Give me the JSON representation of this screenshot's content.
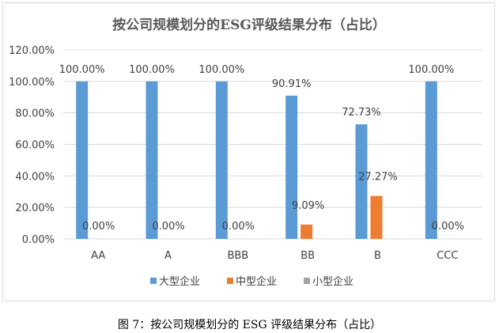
{
  "chart_data": {
    "type": "bar",
    "title": "按公司规模划分的ESG评级结果分布（占比）",
    "categories": [
      "AA",
      "A",
      "BBB",
      "BB",
      "B",
      "CCC"
    ],
    "series": [
      {
        "name": "大型企业",
        "color": "#5b9bd5",
        "values": [
          100.0,
          100.0,
          100.0,
          90.91,
          72.73,
          100.0
        ],
        "labels": [
          "100.00%",
          "100.00%",
          "100.00%",
          "90.91%",
          "72.73%",
          "100.00%"
        ]
      },
      {
        "name": "中型企业",
        "color": "#ed7d31",
        "values": [
          0.0,
          0.0,
          0.0,
          9.09,
          27.27,
          0.0
        ],
        "labels": [
          "0.00%",
          "0.00%",
          "0.00%",
          "9.09%",
          "27.27%",
          "0.00%"
        ]
      },
      {
        "name": "小型企业",
        "color": "#a5a5a5",
        "values": [
          null,
          null,
          null,
          null,
          null,
          null
        ],
        "labels": []
      }
    ],
    "yticks": [
      "0.00%",
      "20.00%",
      "40.00%",
      "60.00%",
      "80.00%",
      "100.00%",
      "120.00%"
    ],
    "ylim": [
      0,
      120
    ],
    "grid": true,
    "legend": "bottom",
    "xlabel": "",
    "ylabel": ""
  },
  "caption": "图 7：按公司规模划分的 ESG 评级结果分布（占比）"
}
